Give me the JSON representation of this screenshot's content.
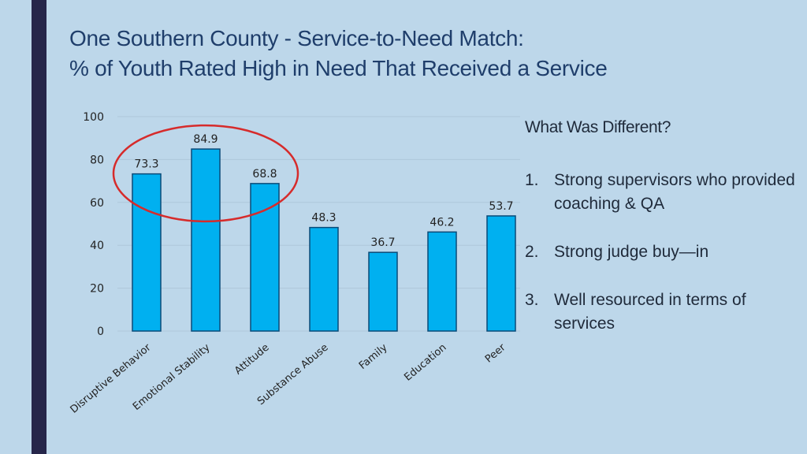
{
  "title": {
    "line1": "One Southern County - Service-to-Need Match:",
    "line2": "% of Youth Rated High in Need That Received a Service"
  },
  "chart_data": {
    "type": "bar",
    "categories": [
      "Disruptive Behavior",
      "Emotional Stability",
      "Attitude",
      "Substance Abuse",
      "Family",
      "Education",
      "Peer"
    ],
    "values": [
      73.3,
      84.9,
      68.8,
      48.3,
      36.7,
      46.2,
      53.7
    ],
    "ylim": [
      0,
      100
    ],
    "yticks": [
      0,
      20,
      40,
      60,
      80,
      100
    ],
    "grid": true,
    "bar_color": "#00b0f0",
    "highlight": {
      "shape": "ellipse",
      "color": "#d62b2b",
      "categories": [
        "Disruptive Behavior",
        "Emotional Stability",
        "Attitude"
      ]
    }
  },
  "notes": {
    "heading": "What Was Different?",
    "items": [
      {
        "num": "1.",
        "text": "Strong supervisors who provided coaching & QA"
      },
      {
        "num": "2.",
        "text": "Strong judge buy—in"
      },
      {
        "num": "3.",
        "text": "Well resourced in terms of services"
      }
    ]
  }
}
